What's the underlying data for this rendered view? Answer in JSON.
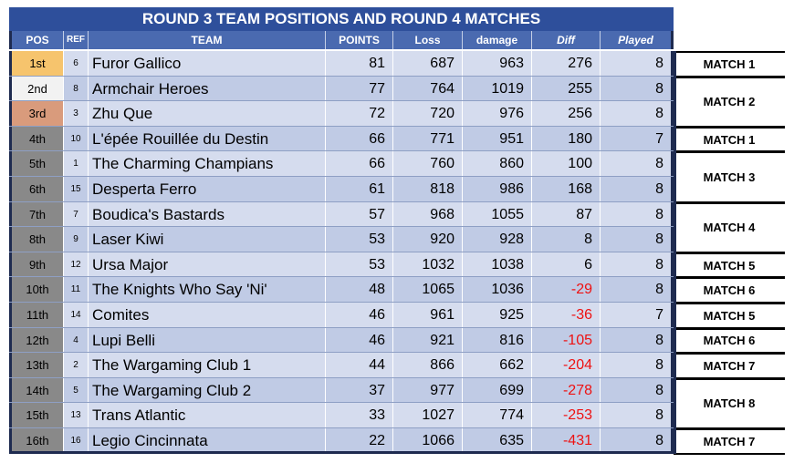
{
  "title": "ROUND 3 TEAM POSITIONS AND ROUND 4 MATCHES",
  "headers": {
    "pos": "POS",
    "ref": "REF",
    "team": "TEAM",
    "points": "POINTS",
    "loss": "Loss",
    "damage": "damage",
    "diff": "Diff",
    "played": "Played"
  },
  "rows": [
    {
      "pos": "1st",
      "ref": "6",
      "team": "Furor Gallico",
      "points": "81",
      "loss": "687",
      "damage": "963",
      "diff": "276",
      "played": "8"
    },
    {
      "pos": "2nd",
      "ref": "8",
      "team": "Armchair Heroes",
      "points": "77",
      "loss": "764",
      "damage": "1019",
      "diff": "255",
      "played": "8"
    },
    {
      "pos": "3rd",
      "ref": "3",
      "team": "Zhu Que",
      "points": "72",
      "loss": "720",
      "damage": "976",
      "diff": "256",
      "played": "8"
    },
    {
      "pos": "4th",
      "ref": "10",
      "team": "L'épée Rouillée du Destin",
      "points": "66",
      "loss": "771",
      "damage": "951",
      "diff": "180",
      "played": "7"
    },
    {
      "pos": "5th",
      "ref": "1",
      "team": "The Charming Champians",
      "points": "66",
      "loss": "760",
      "damage": "860",
      "diff": "100",
      "played": "8"
    },
    {
      "pos": "6th",
      "ref": "15",
      "team": "Desperta Ferro",
      "points": "61",
      "loss": "818",
      "damage": "986",
      "diff": "168",
      "played": "8"
    },
    {
      "pos": "7th",
      "ref": "7",
      "team": "Boudica's Bastards",
      "points": "57",
      "loss": "968",
      "damage": "1055",
      "diff": "87",
      "played": "8"
    },
    {
      "pos": "8th",
      "ref": "9",
      "team": "Laser Kiwi",
      "points": "53",
      "loss": "920",
      "damage": "928",
      "diff": "8",
      "played": "8"
    },
    {
      "pos": "9th",
      "ref": "12",
      "team": "Ursa Major",
      "points": "53",
      "loss": "1032",
      "damage": "1038",
      "diff": "6",
      "played": "8"
    },
    {
      "pos": "10th",
      "ref": "11",
      "team": "The Knights Who Say 'Ni'",
      "points": "48",
      "loss": "1065",
      "damage": "1036",
      "diff": "-29",
      "played": "8"
    },
    {
      "pos": "11th",
      "ref": "14",
      "team": "Comites",
      "points": "46",
      "loss": "961",
      "damage": "925",
      "diff": "-36",
      "played": "7"
    },
    {
      "pos": "12th",
      "ref": "4",
      "team": "Lupi Belli",
      "points": "46",
      "loss": "921",
      "damage": "816",
      "diff": "-105",
      "played": "8"
    },
    {
      "pos": "13th",
      "ref": "2",
      "team": "The Wargaming Club 1",
      "points": "44",
      "loss": "866",
      "damage": "662",
      "diff": "-204",
      "played": "8"
    },
    {
      "pos": "14th",
      "ref": "5",
      "team": "The Wargaming Club 2",
      "points": "37",
      "loss": "977",
      "damage": "699",
      "diff": "-278",
      "played": "8"
    },
    {
      "pos": "15th",
      "ref": "13",
      "team": "Trans Atlantic",
      "points": "33",
      "loss": "1027",
      "damage": "774",
      "diff": "-253",
      "played": "8"
    },
    {
      "pos": "16th",
      "ref": "16",
      "team": "Legio Cincinnata",
      "points": "22",
      "loss": "1066",
      "damage": "635",
      "diff": "-431",
      "played": "8"
    }
  ],
  "matches": [
    {
      "label": "MATCH 1",
      "rows": [
        0
      ]
    },
    {
      "label": "MATCH 2",
      "rows": [
        1,
        2
      ]
    },
    {
      "label": "MATCH 1",
      "rows": [
        3
      ]
    },
    {
      "label": "MATCH 3",
      "rows": [
        4,
        5
      ]
    },
    {
      "label": "MATCH 4",
      "rows": [
        6,
        7
      ]
    },
    {
      "label": "MATCH 5",
      "rows": [
        8
      ]
    },
    {
      "label": "MATCH 6",
      "rows": [
        9
      ]
    },
    {
      "label": "MATCH 5",
      "rows": [
        10
      ]
    },
    {
      "label": "MATCH 6",
      "rows": [
        11
      ]
    },
    {
      "label": "MATCH 7",
      "rows": [
        12
      ]
    },
    {
      "label": "MATCH 8",
      "rows": [
        13,
        14
      ]
    },
    {
      "label": "MATCH 7",
      "rows": [
        15
      ]
    }
  ],
  "colors": {
    "title_bg": "#2e4f9b",
    "header_bg": "#4a6ab0",
    "gold": "#f6c46d",
    "silver": "#f2f2f2",
    "bronze": "#d99b7c",
    "rank_default": "#898989",
    "negative": "#ee1111"
  }
}
